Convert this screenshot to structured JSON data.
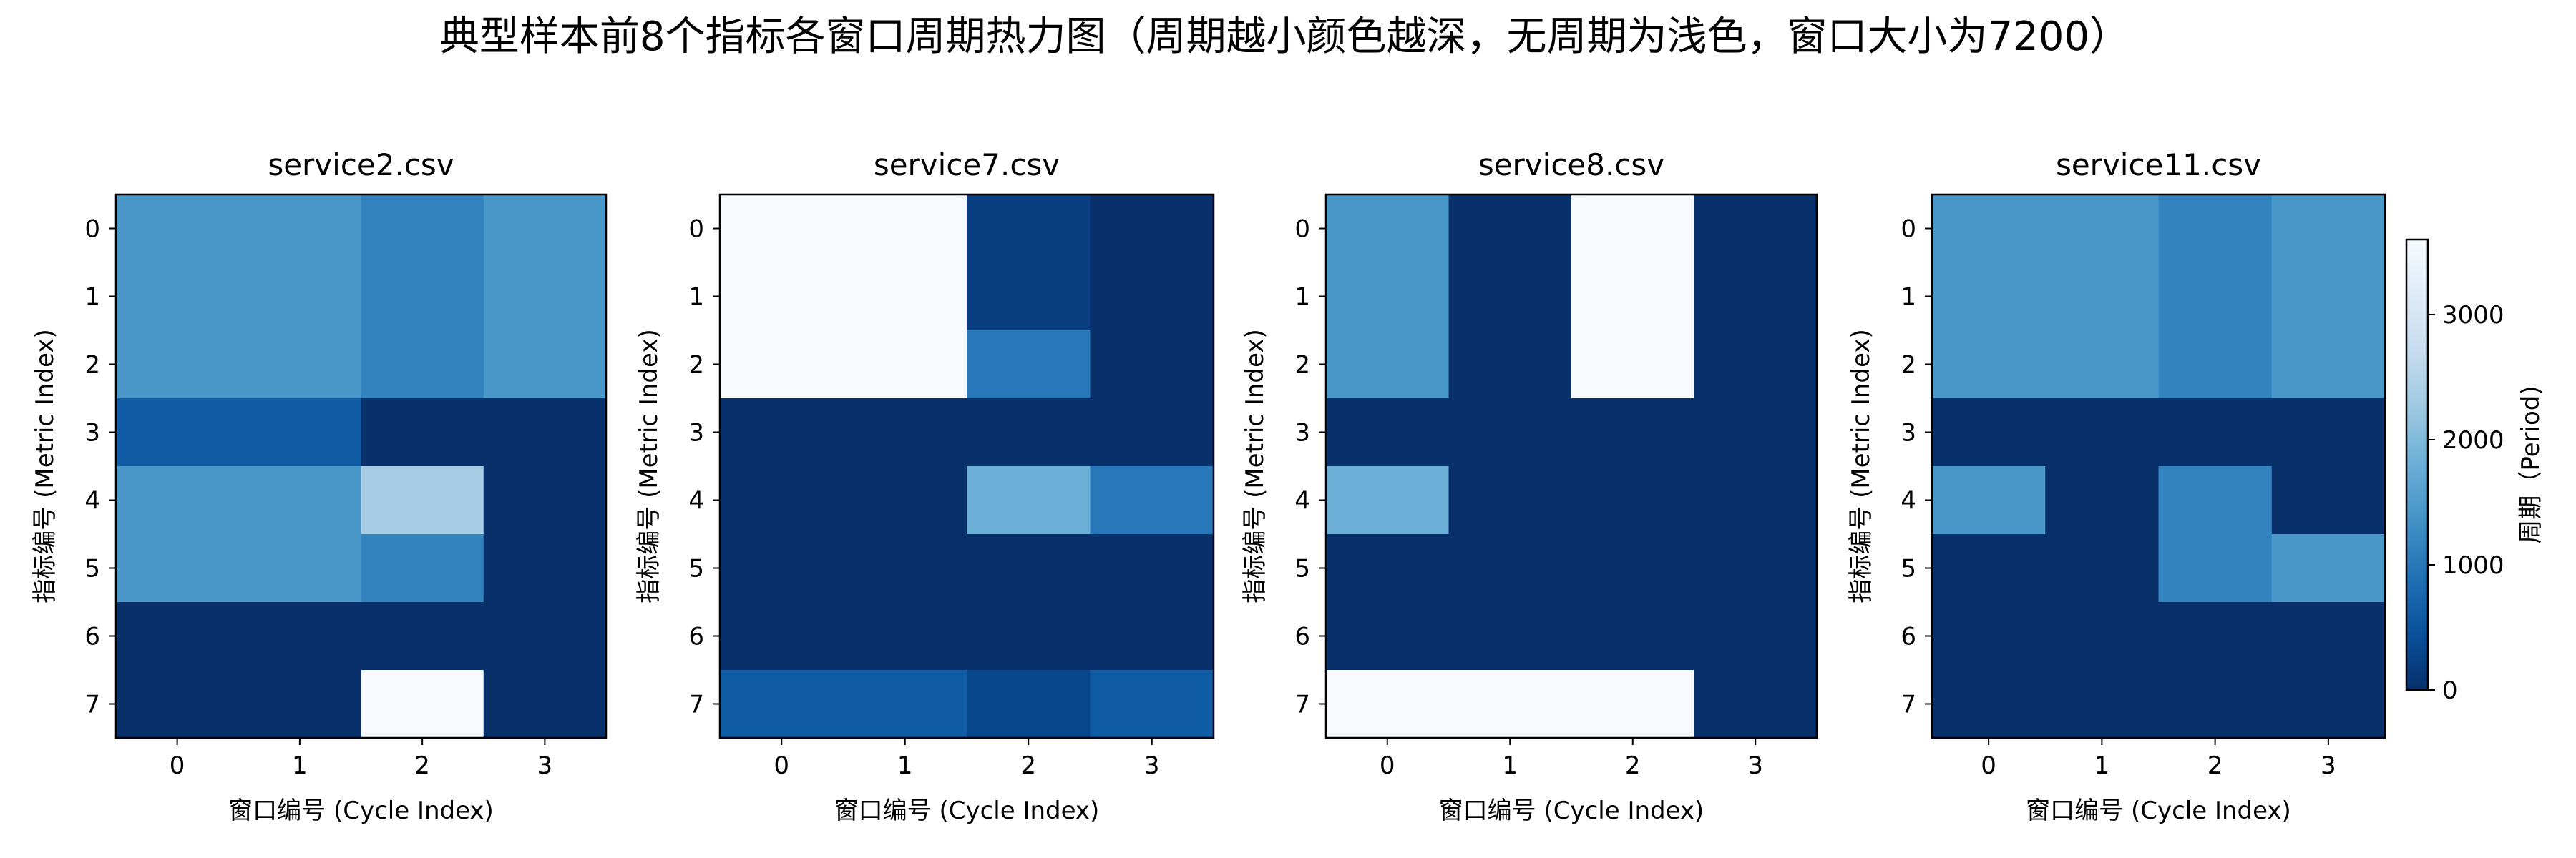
{
  "chart_data": {
    "type": "heatmap",
    "title": "典型样本前8个指标各窗口周期热力图（周期越小颜色越深，无周期为浅色，窗口大小为7200）",
    "colormap": "Blues_r",
    "colormap_stops": [
      "#f7fbff",
      "#deebf7",
      "#c6dbef",
      "#9ecae1",
      "#6baed6",
      "#4292c6",
      "#2171b5",
      "#08519c",
      "#08306b"
    ],
    "vmin": 0,
    "vmax": 3600,
    "colorbar": {
      "label": "周期（Period)",
      "ticks": [
        0,
        1000,
        2000,
        3000
      ],
      "tick_labels": [
        "0",
        "1000",
        "2000",
        "3000"
      ]
    },
    "xlabel": "窗口编号 (Cycle Index)",
    "ylabel": "指标编号 (Metric Index)",
    "x_tick_labels": [
      "0",
      "1",
      "2",
      "3"
    ],
    "y_tick_labels": [
      "0",
      "1",
      "2",
      "3",
      "4",
      "5",
      "6",
      "7"
    ],
    "panels": [
      {
        "title": "service2.csv",
        "values": [
          [
            1440,
            1440,
            1150,
            1440
          ],
          [
            1440,
            1440,
            1150,
            1440
          ],
          [
            1440,
            1440,
            1150,
            1440
          ],
          [
            600,
            600,
            0,
            0
          ],
          [
            1440,
            1440,
            2340,
            0
          ],
          [
            1440,
            1440,
            1150,
            0
          ],
          [
            0,
            0,
            0,
            0
          ],
          [
            0,
            0,
            3600,
            0
          ]
        ]
      },
      {
        "title": "service7.csv",
        "values": [
          [
            3600,
            3600,
            180,
            0
          ],
          [
            3600,
            3600,
            180,
            0
          ],
          [
            3600,
            3600,
            1000,
            0
          ],
          [
            0,
            0,
            0,
            0
          ],
          [
            0,
            0,
            1800,
            1000
          ],
          [
            0,
            0,
            0,
            0
          ],
          [
            0,
            0,
            0,
            0
          ],
          [
            600,
            600,
            300,
            600
          ]
        ]
      },
      {
        "title": "service8.csv",
        "values": [
          [
            1440,
            0,
            3600,
            0
          ],
          [
            1440,
            0,
            3600,
            0
          ],
          [
            1440,
            0,
            3600,
            0
          ],
          [
            0,
            0,
            0,
            0
          ],
          [
            1800,
            0,
            0,
            0
          ],
          [
            0,
            0,
            0,
            0
          ],
          [
            0,
            0,
            0,
            0
          ],
          [
            3600,
            3600,
            3600,
            0
          ]
        ]
      },
      {
        "title": "service11.csv",
        "values": [
          [
            1440,
            1440,
            1150,
            1440
          ],
          [
            1440,
            1440,
            1150,
            1440
          ],
          [
            1440,
            1440,
            1150,
            1440
          ],
          [
            0,
            0,
            0,
            0
          ],
          [
            1440,
            0,
            1150,
            0
          ],
          [
            0,
            0,
            1150,
            1440
          ],
          [
            0,
            0,
            0,
            0
          ],
          [
            0,
            0,
            0,
            0
          ]
        ]
      }
    ]
  }
}
